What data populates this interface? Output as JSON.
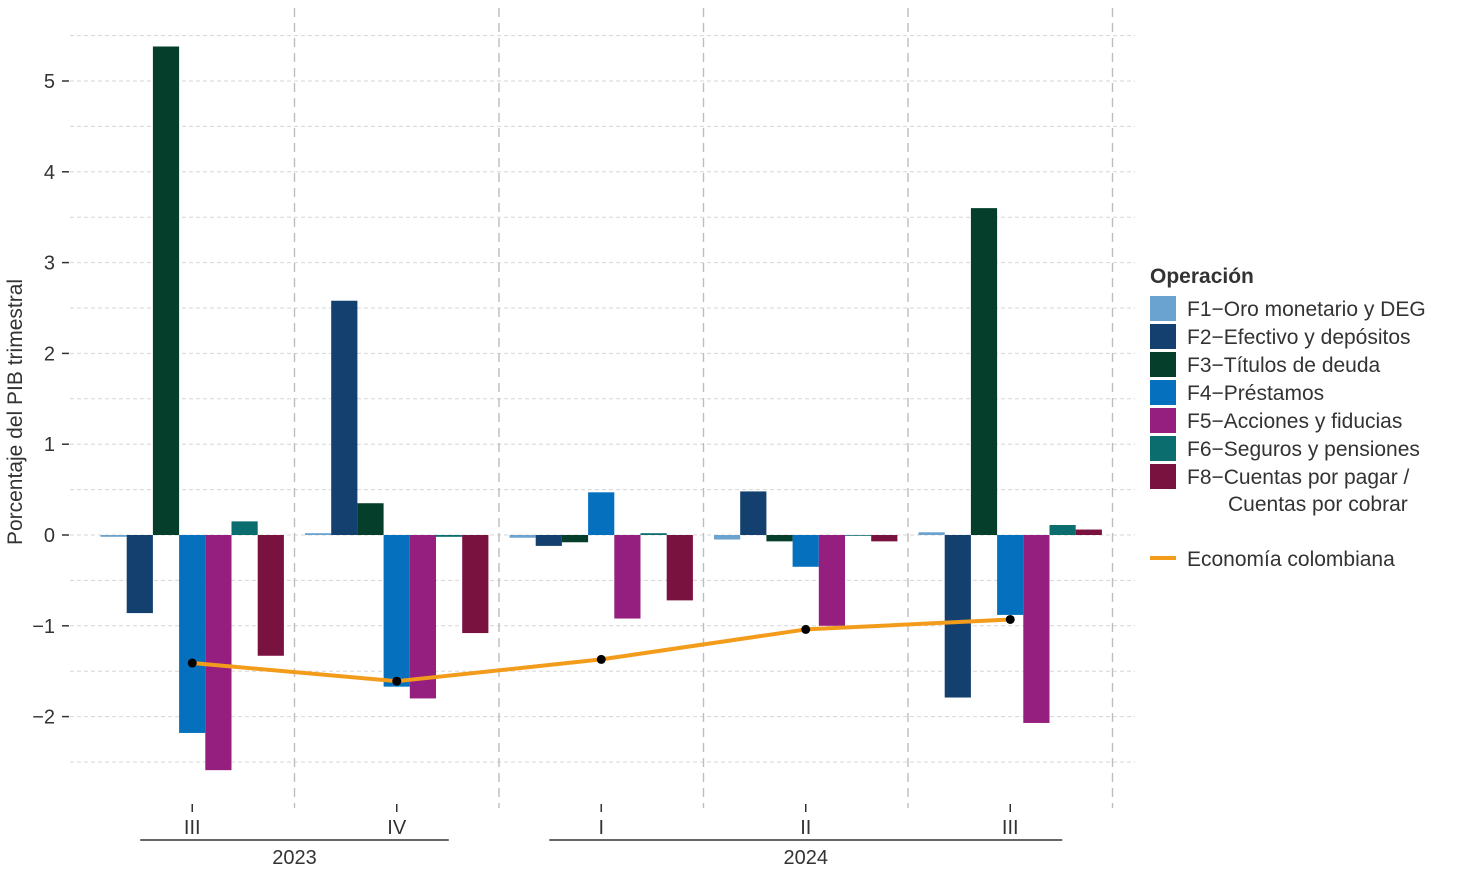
{
  "chart_data": {
    "type": "bar",
    "ylabel": "Porcentaje del PIB trimestral",
    "ylim": [
      -2.95,
      5.5
    ],
    "yticks": [
      -2,
      -1,
      0,
      1,
      2,
      3,
      4,
      5
    ],
    "ytick_labels": [
      "−2",
      "−1",
      "0",
      "1",
      "2",
      "3",
      "4",
      "5"
    ],
    "categories": [
      "III",
      "IV",
      "I",
      "II",
      "III"
    ],
    "year_groups": [
      {
        "label": "2023",
        "categories": [
          0,
          1
        ]
      },
      {
        "label": "2024",
        "categories": [
          2,
          3,
          4
        ]
      }
    ],
    "grid": true,
    "legend_title": "Operación",
    "legend_position": "right",
    "series": [
      {
        "name": "F1−Oro monetario y DEG",
        "color": "#6aa3cf",
        "values": [
          -0.02,
          0.02,
          -0.03,
          -0.05,
          0.03
        ]
      },
      {
        "name": "F2−Efectivo y depósitos",
        "color": "#13406e",
        "values": [
          -0.86,
          2.58,
          -0.12,
          0.48,
          -1.79
        ]
      },
      {
        "name": "F3−Títulos de deuda",
        "color": "#053f2b",
        "values": [
          5.38,
          0.35,
          -0.08,
          -0.07,
          3.6
        ]
      },
      {
        "name": "F4−Préstamos",
        "color": "#0570bd",
        "values": [
          -2.18,
          -1.67,
          0.47,
          -0.35,
          -0.88
        ]
      },
      {
        "name": "F5−Acciones y fiducias",
        "color": "#951f7f",
        "values": [
          -2.59,
          -1.8,
          -0.92,
          -1.0,
          -2.07
        ]
      },
      {
        "name": "F6−Seguros y pensiones",
        "color": "#0b6d6e",
        "values": [
          0.15,
          -0.02,
          0.02,
          0.0,
          0.11
        ]
      },
      {
        "name": "F8−Cuentas por pagar / Cuentas por cobrar",
        "legend_lines": [
          "F8−Cuentas por pagar /",
          "Cuentas por cobrar"
        ],
        "color": "#7a1240",
        "values": [
          -1.33,
          -1.08,
          -0.72,
          -0.07,
          0.06
        ]
      }
    ],
    "line_series": {
      "name": "Economía colombiana",
      "color": "#f39c1b",
      "marker_color": "#000000",
      "values": [
        -1.41,
        -1.61,
        -1.37,
        -1.04,
        -0.93
      ]
    }
  }
}
